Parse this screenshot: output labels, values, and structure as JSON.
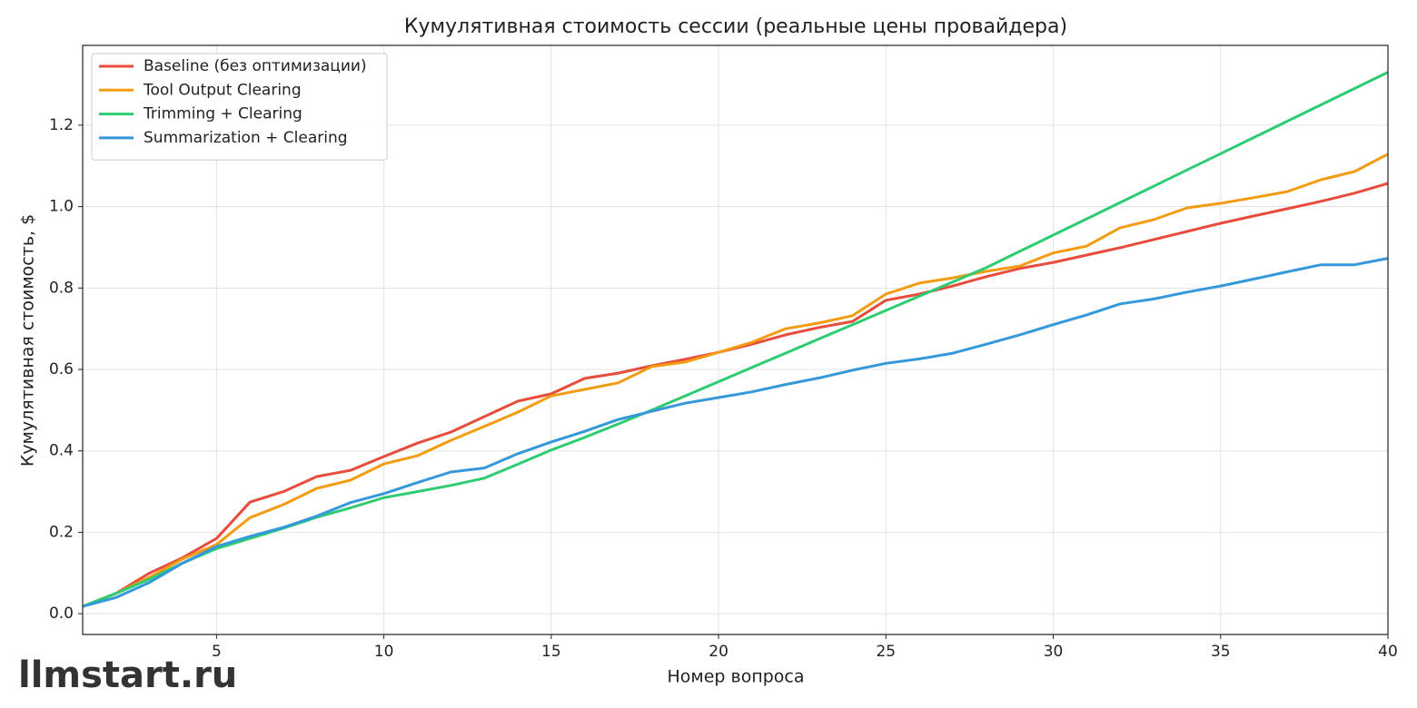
{
  "chart_data": {
    "type": "line",
    "title": "Кумулятивная стоимость сессии (реальные цены провайдера)",
    "x_label": "Номер вопроса",
    "y_label": "Кумулятивная стоимость, $",
    "watermark": "llmstart.ru",
    "x": [
      1,
      2,
      3,
      4,
      5,
      6,
      7,
      8,
      9,
      10,
      11,
      12,
      13,
      14,
      15,
      16,
      17,
      18,
      19,
      20,
      21,
      22,
      23,
      24,
      25,
      26,
      27,
      28,
      29,
      30,
      31,
      32,
      33,
      34,
      35,
      36,
      37,
      38,
      39,
      40
    ],
    "series": [
      {
        "name": "Baseline (без оптимизации)",
        "color": "#e74c3c",
        "values": [
          0.018,
          0.05,
          0.1,
          0.138,
          0.185,
          0.274,
          0.3,
          0.337,
          0.352,
          0.386,
          0.419,
          0.446,
          0.484,
          0.522,
          0.54,
          0.578,
          0.591,
          0.609,
          0.625,
          0.642,
          0.662,
          0.685,
          0.703,
          0.718,
          0.77,
          0.785,
          0.805,
          0.828,
          0.848,
          0.863,
          0.881,
          0.899,
          0.919,
          0.939,
          0.959,
          0.977,
          0.995,
          1.013,
          1.033,
          1.057
        ]
      },
      {
        "name": "Tool Output Clearing",
        "color": "#f39c12",
        "values": [
          0.018,
          0.05,
          0.09,
          0.135,
          0.17,
          0.236,
          0.268,
          0.308,
          0.328,
          0.368,
          0.388,
          0.426,
          0.46,
          0.495,
          0.535,
          0.551,
          0.567,
          0.607,
          0.618,
          0.642,
          0.667,
          0.7,
          0.714,
          0.732,
          0.785,
          0.812,
          0.825,
          0.841,
          0.854,
          0.886,
          0.903,
          0.948,
          0.968,
          0.997,
          1.008,
          1.022,
          1.037,
          1.066,
          1.086,
          1.129
        ]
      },
      {
        "name": "Trimming + Clearing",
        "color": "#2ecc71",
        "values": [
          0.018,
          0.05,
          0.085,
          0.125,
          0.16,
          0.185,
          0.21,
          0.237,
          0.26,
          0.285,
          0.3,
          0.315,
          0.333,
          0.367,
          0.402,
          0.433,
          0.466,
          0.5,
          0.535,
          0.57,
          0.605,
          0.64,
          0.675,
          0.71,
          0.745,
          0.78,
          0.815,
          0.85,
          0.89,
          0.93,
          0.97,
          1.01,
          1.05,
          1.09,
          1.13,
          1.17,
          1.21,
          1.25,
          1.29,
          1.33
        ]
      },
      {
        "name": "Summarization + Clearing",
        "color": "#3498db",
        "values": [
          0.018,
          0.04,
          0.077,
          0.125,
          0.165,
          0.19,
          0.212,
          0.24,
          0.273,
          0.295,
          0.322,
          0.348,
          0.358,
          0.393,
          0.422,
          0.448,
          0.477,
          0.497,
          0.517,
          0.531,
          0.545,
          0.563,
          0.579,
          0.598,
          0.615,
          0.626,
          0.64,
          0.662,
          0.685,
          0.71,
          0.734,
          0.761,
          0.773,
          0.79,
          0.805,
          0.822,
          0.84,
          0.857,
          0.857,
          0.873
        ]
      }
    ],
    "xlim": [
      1,
      40
    ],
    "ylim": [
      -0.051,
      1.396
    ],
    "xticks": [
      5,
      10,
      15,
      20,
      25,
      30,
      35,
      40
    ],
    "yticks": [
      {
        "value": 0,
        "label": "0.0"
      },
      0.2,
      0.4,
      0.6,
      0.8,
      {
        "value": 1,
        "label": "1.0"
      },
      1.2
    ],
    "grid": true,
    "legend": "upper-left"
  }
}
